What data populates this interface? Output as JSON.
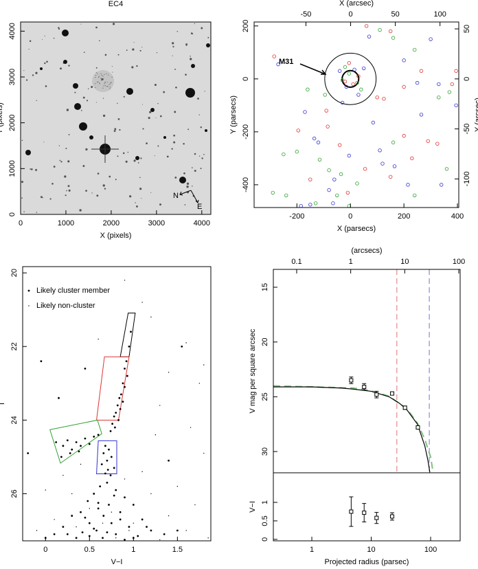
{
  "chart_data": [
    {
      "type": "image",
      "title": "EC4",
      "xlabel": "X (pixels)",
      "ylabel": "Y (pixels)",
      "xlim": [
        0,
        4200
      ],
      "ylim": [
        0,
        4200
      ],
      "xticks": [
        0,
        1000,
        2000,
        3000,
        4000
      ],
      "yticks": [
        0,
        1000,
        2000,
        3000,
        4000
      ],
      "compass": [
        "N",
        "E"
      ]
    },
    {
      "type": "scatter",
      "xlabel": "X (parsecs)",
      "ylabel": "Y (parsecs)",
      "x2label": "X (arcsec)",
      "y2label": "Y (arcsec)",
      "xlim": [
        -360,
        405
      ],
      "ylim": [
        -486,
        215
      ],
      "xticks": [
        -200,
        0,
        200,
        400
      ],
      "yticks": [
        -400,
        -200,
        0,
        200
      ],
      "x2lim": [
        -108,
        121
      ],
      "x2ticks": [
        -50,
        0,
        50,
        100
      ],
      "y2lim": [
        -128.6,
        56.9
      ],
      "y2ticks": [
        -100,
        -50,
        0,
        50
      ],
      "annotation": "M31",
      "circles": [
        {
          "x": 0,
          "y": 0,
          "r": 96
        },
        {
          "x": 0,
          "y": 0,
          "r": 31
        }
      ],
      "series": [
        {
          "color": "#e03030",
          "marker": "circle",
          "x": [
            -285,
            -195,
            -85,
            -40,
            60,
            100,
            125,
            200,
            325,
            380,
            395,
            290,
            230,
            -10,
            150,
            -150,
            55,
            -90,
            150,
            265,
            -5,
            10,
            30,
            -20,
            200
          ],
          "values": [
            85,
            -195,
            -180,
            -250,
            200,
            -70,
            -75,
            -30,
            -245,
            -20,
            30,
            -235,
            -300,
            -430,
            -370,
            -380,
            -340,
            -120,
            180,
            30,
            60,
            -20,
            10,
            -10,
            -215
          ]
        },
        {
          "color": "#3030d0",
          "marker": "circle",
          "x": [
            -270,
            -170,
            -135,
            -120,
            -80,
            -60,
            -30,
            -5,
            30,
            70,
            85,
            120,
            165,
            200,
            215,
            265,
            300,
            330,
            340,
            395,
            -185,
            -65,
            -150,
            50,
            -40,
            15,
            -15,
            110,
            250
          ],
          "values": [
            55,
            -125,
            -225,
            -240,
            -420,
            -380,
            -90,
            -290,
            -60,
            160,
            -165,
            -320,
            -330,
            70,
            -400,
            -135,
            150,
            -20,
            -400,
            -100,
            -480,
            -470,
            -475,
            40,
            30,
            35,
            -30,
            -270,
            -15
          ]
        },
        {
          "color": "#30a030",
          "marker": "circle",
          "x": [
            -290,
            -250,
            -200,
            -160,
            -115,
            -80,
            -35,
            -50,
            25,
            160,
            110,
            160,
            240,
            360,
            -5,
            -240,
            -130,
            -5,
            25,
            -30,
            40,
            -20,
            330,
            370,
            240,
            -95
          ],
          "values": [
            -430,
            -285,
            -275,
            -40,
            -305,
            -345,
            -360,
            -440,
            -395,
            -240,
            185,
            155,
            -440,
            -340,
            -480,
            -440,
            -470,
            20,
            -15,
            -5,
            -40,
            45,
            -70,
            -50,
            110,
            -60
          ]
        }
      ]
    },
    {
      "type": "scatter",
      "xlabel": "V−I",
      "ylabel": "I",
      "xlim": [
        -0.26,
        1.88
      ],
      "ylim": [
        27.28,
        19.83
      ],
      "xticks": [
        0,
        0.5,
        1,
        1.5
      ],
      "yticks": [
        20,
        22,
        24,
        26
      ],
      "legend": "upper left",
      "regions": [
        {
          "color": "#000000",
          "x": [
            0.85,
            0.94,
            1.02,
            0.95
          ],
          "y": [
            22.28,
            21.09,
            21.09,
            22.28
          ]
        },
        {
          "color": "#e03030",
          "x": [
            0.58,
            0.67,
            0.95,
            0.83
          ],
          "y": [
            24.0,
            22.28,
            22.28,
            24.0
          ]
        },
        {
          "color": "#3030d0",
          "x": [
            0.6,
            0.58,
            0.81,
            0.81
          ],
          "y": [
            24.56,
            25.46,
            25.46,
            24.56
          ]
        },
        {
          "color": "#30a030",
          "x": [
            0.05,
            0.59,
            0.64,
            0.17
          ],
          "y": [
            24.26,
            24.0,
            24.37,
            25.17
          ]
        }
      ],
      "series": [
        {
          "name": "Likely cluster member",
          "color": "#000000",
          "marker": "dot",
          "x": [
            0.97,
            0.95,
            0.92,
            0.9,
            0.93,
            0.88,
            0.9,
            0.86,
            0.84,
            0.88,
            0.82,
            0.85,
            0.8,
            0.78,
            0.83,
            0.76,
            0.79,
            0.74,
            0.12,
            0.2,
            0.25,
            0.3,
            0.35,
            0.4,
            0.45,
            0.5,
            0.55,
            0.18,
            0.28,
            0.38,
            0.6,
            -0.2,
            0.68,
            0.72,
            0.66,
            0.75,
            0.7,
            0.64,
            0.78,
            0.71,
            0.68,
            0.74,
            0.7,
            0.62,
            0.8,
            0.55,
            0.9,
            0.48,
            0.72,
            1.0,
            0.6,
            0.4,
            0.85,
            0.3,
            0.66,
            1.1,
            0.5,
            0.75,
            0.2,
            0.95,
            0.58,
            1.2,
            0.42,
            0.8,
            0.1,
            1.05,
            0.65,
            0.35,
            0.9,
            1.35,
            0.0,
            1.5,
            0.55,
            0.7,
            0.85,
            0.45,
            1.15,
            0.25,
            0.6,
            0.78,
            0.5,
            1.0,
            -0.05,
            0.45,
            1.55,
            1.4,
            0.15
          ],
          "values": [
            21.6,
            22.0,
            22.4,
            22.6,
            22.8,
            23.0,
            23.1,
            23.3,
            23.4,
            23.5,
            23.6,
            23.7,
            23.8,
            23.9,
            24.0,
            24.1,
            24.2,
            24.3,
            24.6,
            24.7,
            24.55,
            24.8,
            24.6,
            24.7,
            24.5,
            24.65,
            24.45,
            25.0,
            24.9,
            24.85,
            24.4,
            24.9,
            24.7,
            24.8,
            24.9,
            25.0,
            25.1,
            25.2,
            25.3,
            25.35,
            25.45,
            25.5,
            25.7,
            25.8,
            25.9,
            26.0,
            26.1,
            26.2,
            26.3,
            26.3,
            26.4,
            26.5,
            26.5,
            26.6,
            26.6,
            26.7,
            26.8,
            26.8,
            26.9,
            26.9,
            27.0,
            27.0,
            27.05,
            27.1,
            27.1,
            27.15,
            27.2,
            27.2,
            27.25,
            27.1,
            27.2,
            27.0,
            26.95,
            27.05,
            26.7,
            26.65,
            26.9,
            27.1,
            26.25,
            26.05,
            27.15,
            27.2,
            22.4,
            22.6,
            22.0,
            25.1,
            23.4
          ]
        },
        {
          "name": "Likely non-cluster",
          "color": "#000000",
          "marker": "point",
          "x": [
            1.2,
            1.6,
            0.3,
            1.1,
            1.75,
            0.6,
            1.3,
            1.8,
            0.2,
            1.5,
            1.7,
            1.2,
            0.3,
            0.9,
            1.4,
            1.6,
            1.0,
            0.5,
            0.1,
            -0.1,
            0.8,
            1.3,
            0.35,
            0.65,
            0.95,
            1.85,
            0.75,
            1.1,
            0.4,
            1.65,
            0.9,
            1.4,
            0.0,
            1.8,
            1.25
          ],
          "values": [
            21.2,
            21.9,
            20.5,
            20.8,
            23.0,
            21.8,
            23.6,
            24.9,
            25.5,
            25.8,
            26.3,
            26.0,
            26.0,
            25.6,
            26.6,
            27.0,
            26.8,
            26.4,
            26.7,
            27.0,
            27.2,
            27.25,
            26.9,
            26.8,
            27.0,
            27.2,
            26.5,
            25.4,
            25.2,
            24.2,
            20.2,
            22.7,
            25.9,
            22.5,
            24.4
          ]
        }
      ]
    },
    {
      "type": "scatter",
      "ylabel": "V mag per square arcsec",
      "x2label": "(arcsecs)",
      "xlim": [
        0.225,
        314
      ],
      "xlog": true,
      "ylim": [
        31.94,
        13.37
      ],
      "yticks": [
        15,
        20,
        25,
        30
      ],
      "x2lim": [
        0.037,
        106
      ],
      "x2log": true,
      "x2ticks": [
        0.1,
        1,
        10,
        100
      ],
      "vlines": [
        {
          "x": 27,
          "color": "#e07070"
        },
        {
          "x": 95,
          "color": "#7070e0"
        }
      ],
      "series": [
        {
          "color": "#80c080",
          "marker": "line",
          "dashed": true,
          "x": [
            0.225,
            5,
            10,
            20,
            40,
            60,
            80,
            100,
            110
          ],
          "values": [
            24.0,
            24.2,
            24.45,
            24.95,
            26.1,
            27.4,
            28.9,
            30.5,
            31.9
          ]
        },
        {
          "color": "#000000",
          "marker": "line",
          "x": [
            0.225,
            1,
            3,
            5,
            10,
            20,
            30,
            40,
            60,
            80,
            90,
            97
          ],
          "values": [
            24.1,
            24.1,
            24.2,
            24.3,
            24.5,
            25.0,
            25.6,
            26.2,
            27.5,
            29.5,
            30.8,
            31.9
          ]
        },
        {
          "color": "#000000",
          "marker": "square",
          "x": [
            4.6,
            7.6,
            12.3,
            22.5,
            37,
            61
          ],
          "values": [
            23.5,
            24.1,
            24.8,
            24.7,
            26.0,
            27.8
          ],
          "errors": [
            0.3,
            0.3,
            0.3,
            0.15,
            0.15,
            0.15
          ]
        }
      ]
    },
    {
      "type": "scatter",
      "xlabel": "Projected radius (parsec)",
      "ylabel": "V−I",
      "xlim": [
        0.225,
        314
      ],
      "xlog": true,
      "ylim": [
        -0.04,
        1.8
      ],
      "xticks": [
        1,
        10,
        100
      ],
      "yticks": [
        0,
        0.5,
        1
      ],
      "series": [
        {
          "color": "#000000",
          "marker": "square",
          "x": [
            4.6,
            7.6,
            12.3,
            22.5
          ],
          "values": [
            0.75,
            0.72,
            0.58,
            0.62
          ],
          "errors": [
            0.4,
            0.25,
            0.15,
            0.1
          ]
        }
      ]
    }
  ]
}
